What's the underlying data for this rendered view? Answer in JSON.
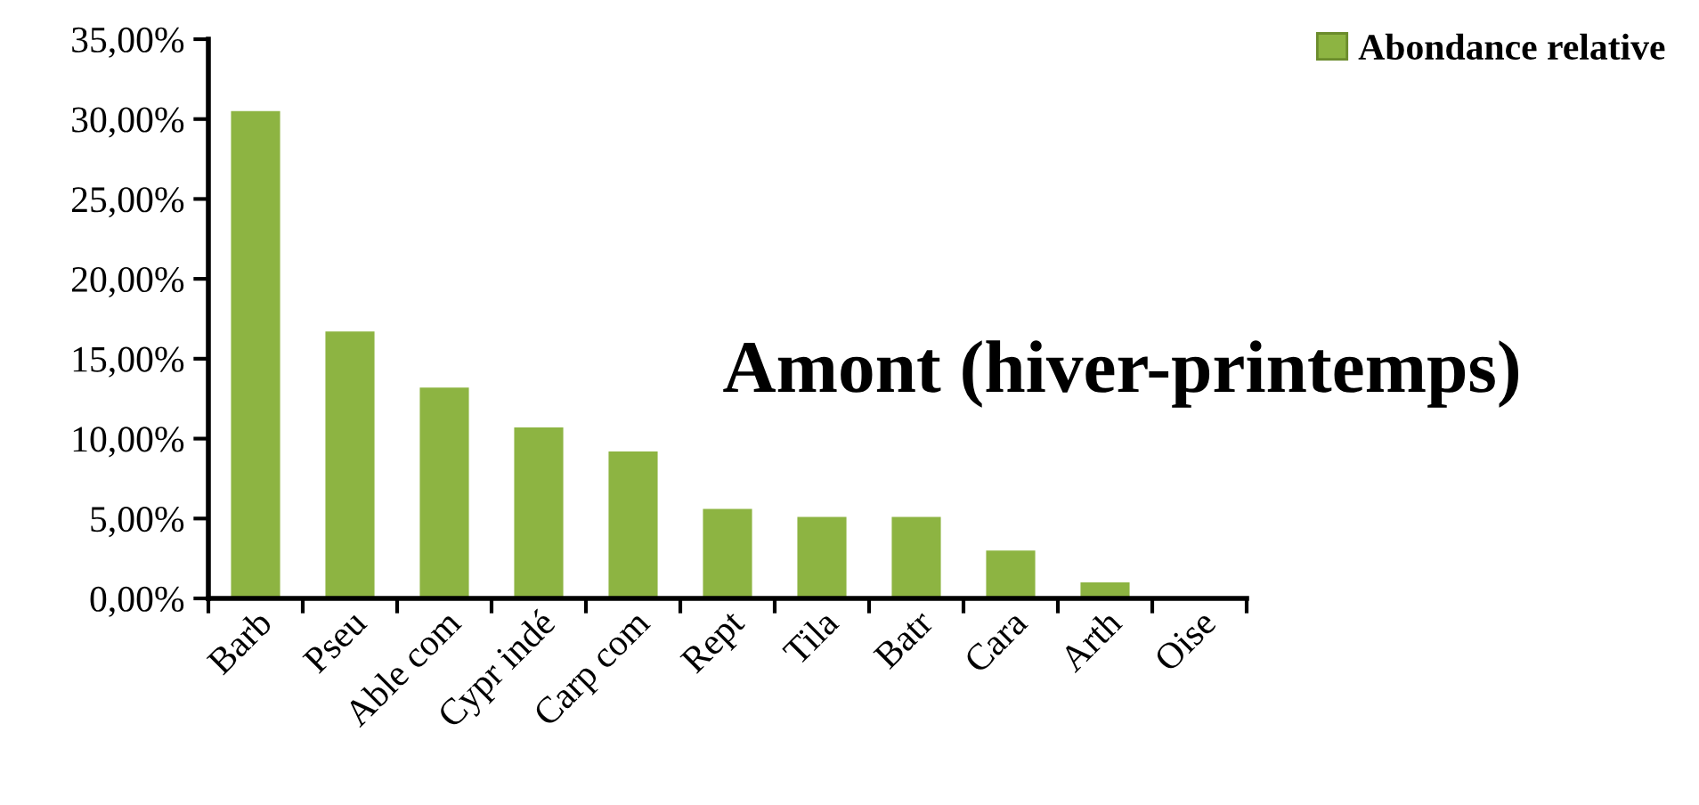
{
  "chart_data": {
    "type": "bar",
    "title": "Amont (hiver-printemps)",
    "categories": [
      "Barb",
      "Pseu",
      "Able com",
      "Cypr indé",
      "Carp com",
      "Rept",
      "Tila",
      "Batr",
      "Cara",
      "Arth",
      "Oise"
    ],
    "series": [
      {
        "name": "Abondance relative",
        "color": "#8db442",
        "values": [
          30.5,
          16.7,
          13.2,
          10.7,
          9.2,
          5.6,
          5.1,
          5.1,
          3.0,
          1.0,
          0
        ]
      }
    ],
    "ylim": [
      0,
      35
    ],
    "yticks": [
      {
        "value": 0,
        "label": "0,00%"
      },
      {
        "value": 5,
        "label": "5,00%"
      },
      {
        "value": 10,
        "label": "10,00%"
      },
      {
        "value": 15,
        "label": "15,00%"
      },
      {
        "value": 20,
        "label": "20,00%"
      },
      {
        "value": 25,
        "label": "25,00%"
      },
      {
        "value": 30,
        "label": "30,00%"
      },
      {
        "value": 35,
        "label": "35,00%"
      }
    ],
    "grid": false,
    "legend": "top right"
  }
}
